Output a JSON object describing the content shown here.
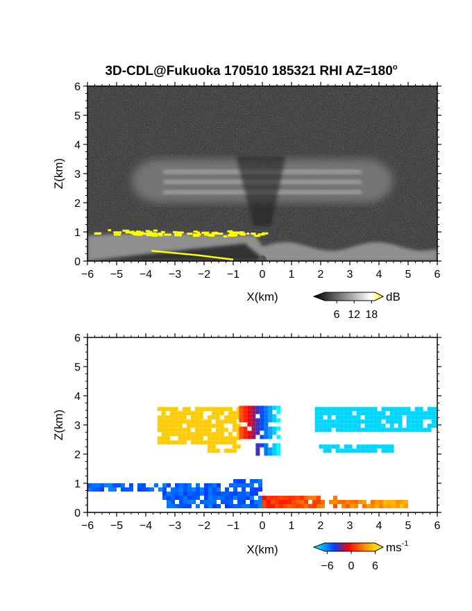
{
  "chart_data": [
    {
      "type": "heatmap",
      "title": "3D-CDL@Fukuoka 170510 185321 RHI AZ=180",
      "title_superscript": "o",
      "quantity": "backscatter intensity",
      "xlabel": "X(km)",
      "ylabel": "Z(km)",
      "xlim": [
        -6,
        6
      ],
      "ylim": [
        0,
        6
      ],
      "xticks": [
        "-6",
        "-5",
        "-4",
        "-3",
        "-2",
        "-1",
        "0",
        "1",
        "2",
        "3",
        "4",
        "5",
        "6"
      ],
      "yticks": [
        "0",
        "1",
        "2",
        "3",
        "4",
        "5",
        "6"
      ],
      "colorbar": {
        "unit": "dB",
        "tick_values": [
          6,
          12,
          18
        ],
        "tick_labels": [
          "6",
          "12",
          "18"
        ],
        "range": [
          0,
          22
        ],
        "colors": [
          "#000000",
          "#ffffff",
          "#ffff00"
        ]
      },
      "features": [
        {
          "name": "cloud layer",
          "x": [
            -4,
            4
          ],
          "z": [
            2,
            3.5
          ],
          "level_db": 12
        },
        {
          "name": "boundary layer",
          "x": [
            -6,
            6
          ],
          "z": [
            0,
            1
          ],
          "level_db": 14
        },
        {
          "name": "boundary-layer top",
          "x": [
            -5.8,
            0
          ],
          "z": [
            0.8,
            1.1
          ],
          "level_db": 20
        }
      ]
    },
    {
      "type": "heatmap",
      "quantity": "radial velocity",
      "xlabel": "X(km)",
      "ylabel": "Z(km)",
      "xlim": [
        -6,
        6
      ],
      "ylim": [
        0,
        6
      ],
      "xticks": [
        "-6",
        "-5",
        "-4",
        "-3",
        "-2",
        "-1",
        "0",
        "1",
        "2",
        "3",
        "4",
        "5",
        "6"
      ],
      "yticks": [
        "0",
        "1",
        "2",
        "3",
        "4",
        "5",
        "6"
      ],
      "colorbar": {
        "unit_base": "ms",
        "unit_exp": "-1",
        "tick_values": [
          -6,
          0,
          6
        ],
        "tick_labels": [
          "-6",
          "0",
          "6"
        ],
        "range": [
          -8,
          8
        ],
        "colors": [
          "#00ffff",
          "#0040ff",
          "#ff0000",
          "#ff9900",
          "#ffff00"
        ]
      },
      "regions": [
        {
          "name": "cloud layer west",
          "x": [
            -3.6,
            -0.8
          ],
          "z": [
            1.9,
            3.7
          ],
          "velocity": 6
        },
        {
          "name": "cloud layer center",
          "x": [
            -0.8,
            0.5
          ],
          "z": [
            1.8,
            3.7
          ],
          "velocity": 0
        },
        {
          "name": "cloud layer east",
          "x": [
            1.8,
            6
          ],
          "z": [
            1.9,
            3.7
          ],
          "velocity": -7
        },
        {
          "name": "boundary layer west",
          "x": [
            -6,
            0
          ],
          "z": [
            0,
            1.2
          ],
          "velocity": -4
        },
        {
          "name": "boundary layer east",
          "x": [
            0,
            5
          ],
          "z": [
            0,
            0.6
          ],
          "velocity": 2
        }
      ]
    }
  ]
}
